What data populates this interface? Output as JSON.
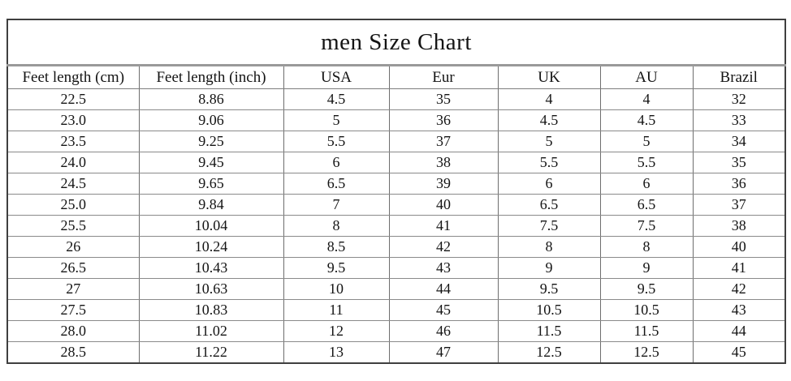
{
  "title": "men Size Chart",
  "chart_data": {
    "type": "table",
    "title": "men Size Chart",
    "columns": [
      "Feet length (cm)",
      "Feet length (inch)",
      "USA",
      "Eur",
      "UK",
      "AU",
      "Brazil"
    ],
    "rows": [
      [
        "22.5",
        "8.86",
        "4.5",
        "35",
        "4",
        "4",
        "32"
      ],
      [
        "23.0",
        "9.06",
        "5",
        "36",
        "4.5",
        "4.5",
        "33"
      ],
      [
        "23.5",
        "9.25",
        "5.5",
        "37",
        "5",
        "5",
        "34"
      ],
      [
        "24.0",
        "9.45",
        "6",
        "38",
        "5.5",
        "5.5",
        "35"
      ],
      [
        "24.5",
        "9.65",
        "6.5",
        "39",
        "6",
        "6",
        "36"
      ],
      [
        "25.0",
        "9.84",
        "7",
        "40",
        "6.5",
        "6.5",
        "37"
      ],
      [
        "25.5",
        "10.04",
        "8",
        "41",
        "7.5",
        "7.5",
        "38"
      ],
      [
        "26",
        "10.24",
        "8.5",
        "42",
        "8",
        "8",
        "40"
      ],
      [
        "26.5",
        "10.43",
        "9.5",
        "43",
        "9",
        "9",
        "41"
      ],
      [
        "27",
        "10.63",
        "10",
        "44",
        "9.5",
        "9.5",
        "42"
      ],
      [
        "27.5",
        "10.83",
        "11",
        "45",
        "10.5",
        "10.5",
        "43"
      ],
      [
        "28.0",
        "11.02",
        "12",
        "46",
        "11.5",
        "11.5",
        "44"
      ],
      [
        "28.5",
        "11.22",
        "13",
        "47",
        "12.5",
        "12.5",
        "45"
      ]
    ],
    "layout": {
      "legend": "none",
      "grid": "on"
    }
  },
  "colors": {
    "background": "#ffffff",
    "text": "#141414",
    "border_outer": "#3f3f3f",
    "border_inner_horizontal": "#8a8a8a",
    "border_inner_vertical": "#6e6e6e",
    "title_rule": "#9a9a9a"
  }
}
